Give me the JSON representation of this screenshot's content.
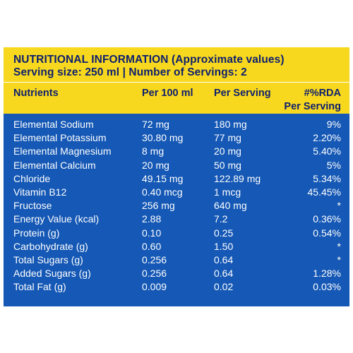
{
  "title_line1": "NUTRITIONAL INFORMATION (Approximate values)",
  "title_line2": "Serving size: 250 ml | Number of Servings: 2",
  "headers": {
    "nutrients": "Nutrients",
    "per100": "Per 100 ml",
    "perServing": "Per Serving",
    "rda_line1": "#%RDA",
    "rda_line2": "Per Serving"
  },
  "rows": [
    {
      "name": "Elemental Sodium",
      "per100": "72 mg",
      "perServing": "180 mg",
      "rda": "9%"
    },
    {
      "name": "Elemental Potassium",
      "per100": "30.80 mg",
      "perServing": "77 mg",
      "rda": "2.20%"
    },
    {
      "name": "Elemental Magnesium",
      "per100": "8 mg",
      "perServing": "20 mg",
      "rda": "5.40%"
    },
    {
      "name": "Elemental Calcium",
      "per100": "20 mg",
      "perServing": "50 mg",
      "rda": "5%"
    },
    {
      "name": "Chloride",
      "per100": "49.15 mg",
      "perServing": "122.89 mg",
      "rda": "5.34%"
    },
    {
      "name": "Vitamin B12",
      "per100": "0.40 mcg",
      "perServing": "1 mcg",
      "rda": "45.45%"
    },
    {
      "name": "Fructose",
      "per100": "256 mg",
      "perServing": "640 mg",
      "rda": "*"
    },
    {
      "name": "Energy Value (kcal)",
      "per100": "2.88",
      "perServing": "7.2",
      "rda": "0.36%"
    },
    {
      "name": "Protein (g)",
      "per100": "0.10",
      "perServing": "0.25",
      "rda": "0.54%"
    },
    {
      "name": "Carbohydrate (g)",
      "per100": "0.60",
      "perServing": "1.50",
      "rda": "*"
    },
    {
      "name": "Total Sugars (g)",
      "per100": "0.256",
      "perServing": "0.64",
      "rda": "*"
    },
    {
      "name": "Added Sugars (g)",
      "per100": "0.256",
      "perServing": "0.64",
      "rda": "1.28%"
    },
    {
      "name": "Total Fat (g)",
      "per100": "0.009",
      "perServing": "0.02",
      "rda": "0.03%"
    }
  ],
  "colors": {
    "panel": "#1558b5",
    "band": "#f7d81e",
    "header_text": "#0e1f6e",
    "row_text": "#ffffff"
  }
}
